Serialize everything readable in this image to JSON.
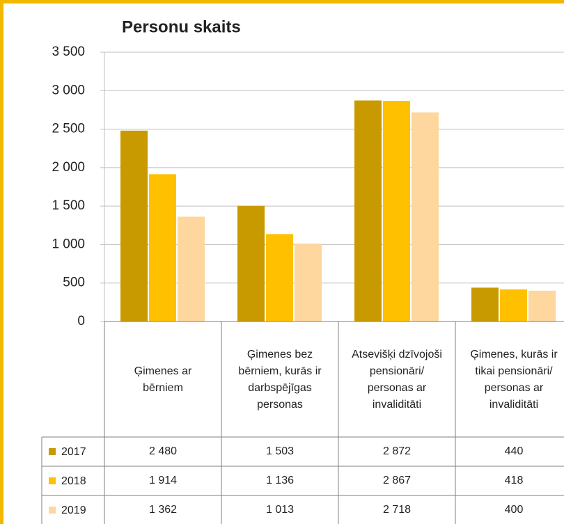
{
  "chart_data": {
    "type": "bar",
    "title": "Personu skaits",
    "categories": [
      "Ģimenes ar bērniem",
      "Ģimenes bez bērniem, kurās ir darbspējīgas personas",
      "Atsevišķi dzīvojoši pensionāri/ personas ar invaliditāti",
      "Ģimenes, kurās ir tikai pensionāri/ personas ar invaliditāti"
    ],
    "series": [
      {
        "name": "2017",
        "color": "#c99a00",
        "values": [
          2480,
          1503,
          2872,
          440
        ],
        "value_labels": [
          "2 480",
          "1 503",
          "2 872",
          "440"
        ]
      },
      {
        "name": "2018",
        "color": "#ffc000",
        "values": [
          1914,
          1136,
          2867,
          418
        ],
        "value_labels": [
          "1 914",
          "1 136",
          "2 867",
          "418"
        ]
      },
      {
        "name": "2019",
        "color": "#fdd79e",
        "values": [
          1362,
          1013,
          2718,
          400
        ],
        "value_labels": [
          "1 362",
          "1 013",
          "2 718",
          "400"
        ]
      }
    ],
    "ylim": [
      0,
      3500
    ],
    "yticks": [
      0,
      500,
      {
        "value": 1000,
        "label": "1 000"
      },
      {
        "value": 1500,
        "label": "1 500"
      },
      {
        "value": 2000,
        "label": "2 000"
      },
      {
        "value": 2500,
        "label": "2 500"
      },
      {
        "value": 3000,
        "label": "3 000"
      },
      {
        "value": 3500,
        "label": "3 500"
      }
    ],
    "grid": true,
    "data_table": true
  }
}
